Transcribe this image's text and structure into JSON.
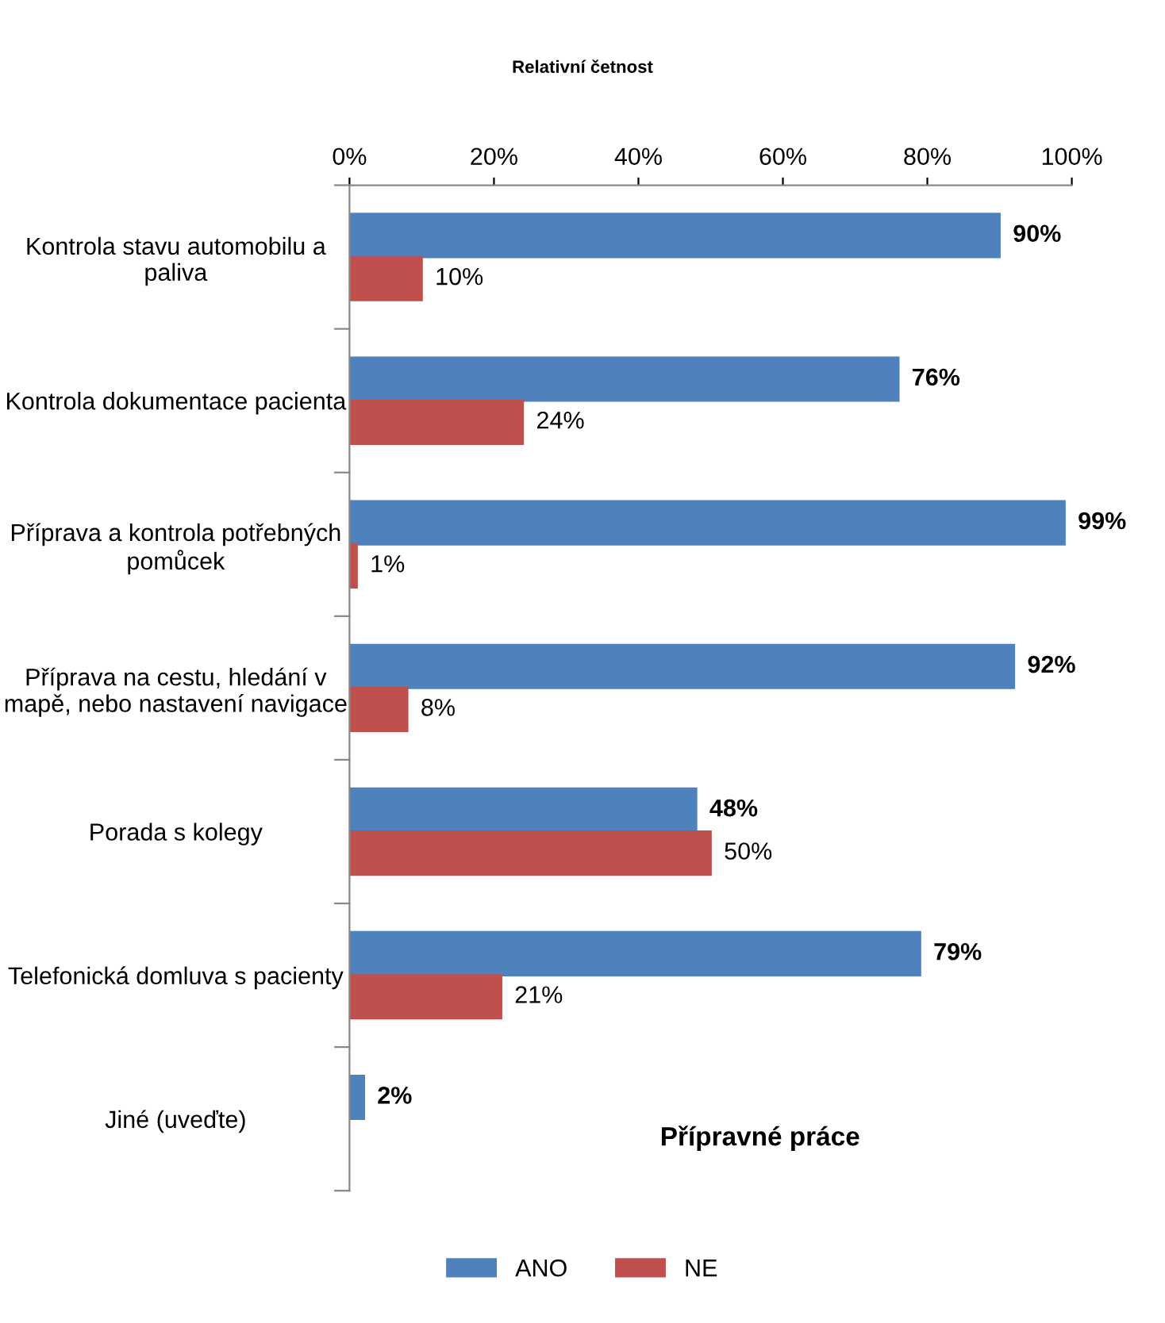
{
  "chart_data": {
    "type": "bar",
    "orientation": "horizontal",
    "title": "Relativní četnost",
    "categories": [
      "Kontrola stavu automobilu a paliva",
      "Kontrola dokumentace pacienta",
      "Příprava a kontrola potřebných pomůcek",
      "Příprava na cestu, hledání v mapě, nebo nastavení navigace",
      "Porada s kolegy",
      "Telefonická domluva s pacienty",
      "Jiné (uveďte)"
    ],
    "series": [
      {
        "name": "ANO",
        "color": "#4f81bd",
        "values": [
          90,
          76,
          99,
          92,
          48,
          79,
          2
        ],
        "value_labels": [
          "90%",
          "76%",
          "99%",
          "92%",
          "48%",
          "79%",
          "2%"
        ]
      },
      {
        "name": "NE",
        "color": "#c0504d",
        "values": [
          10,
          24,
          1,
          8,
          50,
          21,
          null
        ],
        "value_labels": [
          "10%",
          "24%",
          "1%",
          "8%",
          "50%",
          "21%",
          null
        ]
      }
    ],
    "xlim": [
      0,
      100
    ],
    "xticks": [
      {
        "value": 0,
        "label": "0%"
      },
      {
        "value": 20,
        "label": "20%"
      },
      {
        "value": 40,
        "label": "40%"
      },
      {
        "value": 60,
        "label": "60%"
      },
      {
        "value": 80,
        "label": "80%"
      },
      {
        "value": 100,
        "label": "100%"
      }
    ],
    "annotations": [
      "Přípravné práce"
    ],
    "legend": "bottom",
    "grid": false
  }
}
